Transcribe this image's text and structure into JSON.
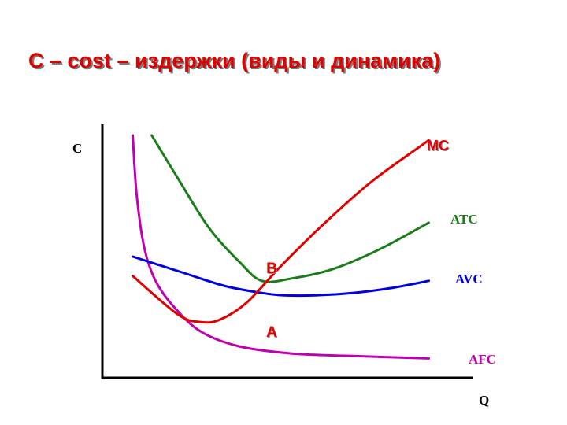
{
  "title": "C – cost – издержки (виды и динамика)",
  "chart_data": {
    "type": "line",
    "xlabel": "Q",
    "ylabel": "C",
    "xlim": [
      0,
      100
    ],
    "ylim": [
      0,
      100
    ],
    "grid": false,
    "series": [
      {
        "name": "MC",
        "color": "#e00000",
        "x": [
          8,
          20,
          26,
          31,
          38,
          47,
          58,
          71,
          86
        ],
        "y": [
          42,
          26,
          23,
          24,
          31,
          46,
          63,
          81,
          98
        ]
      },
      {
        "name": "ATC",
        "color": "#1a7d1a",
        "x": [
          13,
          20,
          28,
          36,
          42,
          50,
          61,
          73,
          86
        ],
        "y": [
          100,
          82,
          62,
          48,
          40,
          41,
          45,
          53,
          64
        ]
      },
      {
        "name": "AVC",
        "color": "#0000e0",
        "x": [
          8,
          20,
          32,
          42,
          48,
          56,
          66,
          76,
          86
        ],
        "y": [
          50,
          44,
          38,
          35,
          34,
          34,
          35,
          37,
          40
        ]
      },
      {
        "name": "AFC",
        "color": "#c000b0",
        "x": [
          8,
          9,
          11,
          14,
          19,
          26,
          36,
          50,
          66,
          86
        ],
        "y": [
          100,
          76,
          54,
          40,
          29,
          19,
          13,
          10,
          9,
          8
        ]
      }
    ],
    "points": [
      {
        "label": "B",
        "x": 44,
        "y": 40
      },
      {
        "label": "A",
        "x": 44,
        "y": 28
      }
    ]
  }
}
